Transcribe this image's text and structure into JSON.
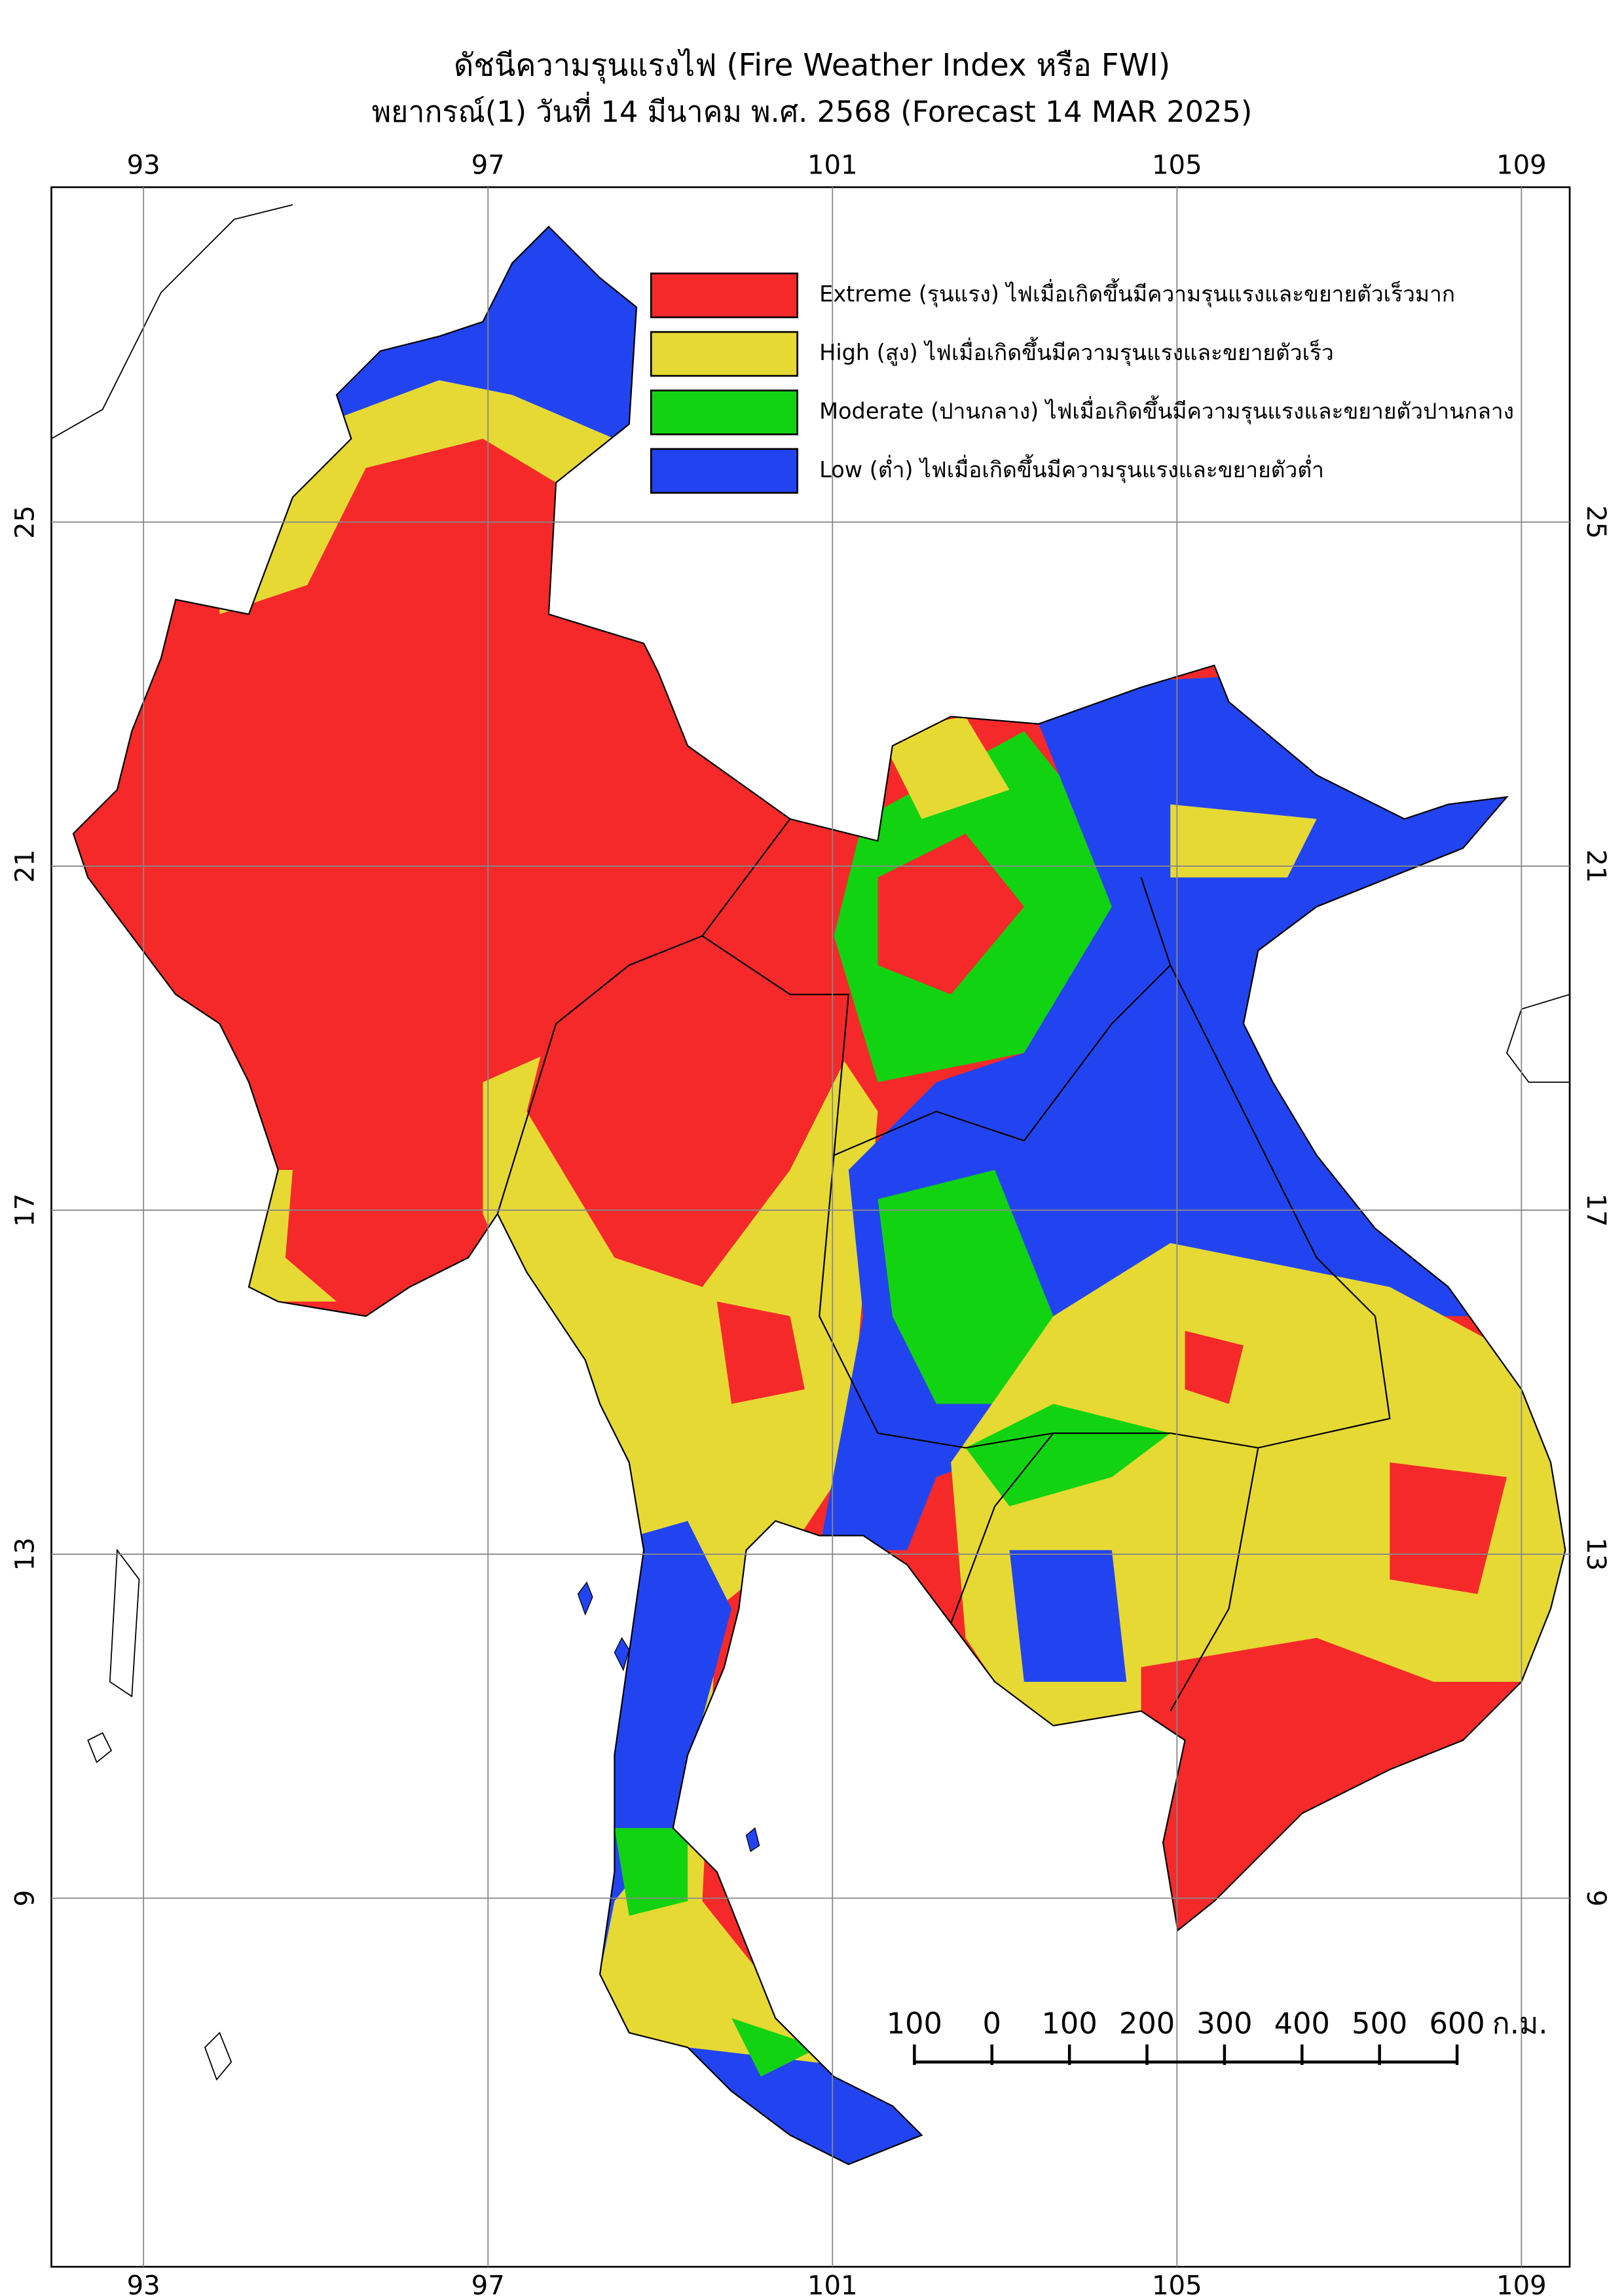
{
  "header": {
    "title": "ดัชนีความรุนแรงไฟ (Fire Weather Index หรือ FWI)",
    "subtitle": "พยากรณ์(1) วันที่ 14 มีนาคม พ.ศ. 2568 (Forecast 14 MAR 2025)"
  },
  "map": {
    "longitudes": [
      93,
      97,
      101,
      105,
      109
    ],
    "latitudes": [
      25,
      21,
      17,
      13,
      9
    ],
    "legend": [
      {
        "label": "Extreme (รุนแรง) ไฟเมื่อเกิดขึ้นมีความรุนแรงและขยายตัวเร็วมาก",
        "color": "#f5292a"
      },
      {
        "label": "High (สูง) ไฟเมื่อเกิดขึ้นมีความรุนแรงและขยายตัวเร็ว",
        "color": "#e6d934"
      },
      {
        "label": "Moderate (ปานกลาง) ไฟเมื่อเกิดขึ้นมีความรุนแรงและขยายตัวปานกลาง",
        "color": "#12d312"
      },
      {
        "label": "Low (ต่ำ) ไฟเมื่อเกิดขึ้นมีความรุนแรงและขยายตัวต่ำ",
        "color": "#2244f0"
      }
    ],
    "scale_bar": {
      "labels": [
        "100",
        "0",
        "100",
        "200",
        "300",
        "400",
        "500",
        "600"
      ],
      "unit": "ก.ม."
    }
  }
}
